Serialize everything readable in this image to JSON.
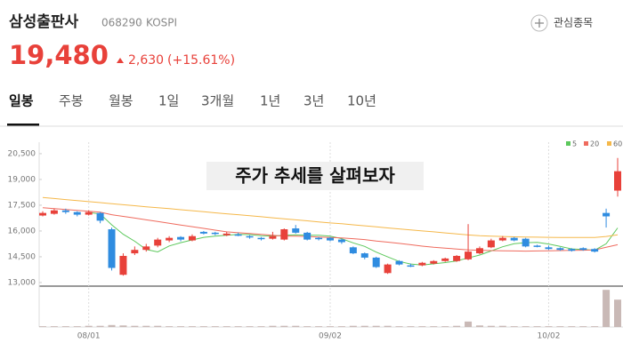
{
  "header": {
    "title": "삼성출판사",
    "code": "068290",
    "market": "KOSPI",
    "watch_button": "관심종목",
    "price": "19,480",
    "change": "2,630",
    "change_pct": "(+15.61%)"
  },
  "tabs": [
    "일봉",
    "주봉",
    "월봉",
    "1일",
    "3개월",
    "1년",
    "3년",
    "10년"
  ],
  "overlay_text": "주가 추세를 살펴보자",
  "chart_data": {
    "type": "candlestick",
    "categories": [
      null,
      null,
      null,
      null,
      "08/01",
      null,
      null,
      null,
      null,
      null,
      null,
      null,
      null,
      null,
      null,
      null,
      null,
      null,
      null,
      null,
      null,
      null,
      null,
      null,
      null,
      "09/02",
      null,
      null,
      null,
      null,
      null,
      null,
      null,
      null,
      null,
      null,
      null,
      null,
      null,
      null,
      null,
      null,
      null,
      null,
      "10/02",
      null,
      null,
      null,
      null,
      null,
      null
    ],
    "open": [
      16900,
      17000,
      17200,
      17100,
      16950,
      17050,
      16100,
      13450,
      14700,
      14900,
      15150,
      15450,
      15650,
      15450,
      15950,
      15900,
      15750,
      15800,
      15700,
      15600,
      15550,
      15500,
      16150,
      15900,
      15600,
      15600,
      15500,
      15050,
      14700,
      14450,
      13550,
      14250,
      14000,
      14000,
      14100,
      14250,
      14250,
      14350,
      14700,
      15050,
      15450,
      15600,
      15550,
      15150,
      15050,
      15000,
      14950,
      15000,
      14950,
      17050,
      18350
    ],
    "high": [
      17150,
      17300,
      17300,
      17150,
      17200,
      17100,
      16200,
      14700,
      15100,
      15250,
      15600,
      15700,
      15700,
      15800,
      16000,
      15950,
      15950,
      15900,
      15750,
      15650,
      15950,
      16150,
      16350,
      15950,
      15650,
      15650,
      15550,
      15100,
      14750,
      14500,
      14100,
      14300,
      14100,
      14200,
      14300,
      14450,
      14600,
      16400,
      15100,
      15550,
      15700,
      15650,
      15600,
      15200,
      15150,
      15050,
      15000,
      15050,
      15000,
      17300,
      20250
    ],
    "low": [
      16850,
      16950,
      17000,
      16850,
      16900,
      16450,
      13700,
      13400,
      14600,
      14800,
      15050,
      15350,
      15400,
      15400,
      15800,
      15750,
      15700,
      15700,
      15550,
      15450,
      15500,
      15450,
      15850,
      15450,
      15450,
      15400,
      15250,
      14650,
      14350,
      13850,
      13500,
      14000,
      13900,
      13950,
      14050,
      14200,
      14200,
      14300,
      14650,
      15000,
      15400,
      15400,
      15050,
      15050,
      14900,
      14850,
      14800,
      14850,
      14750,
      16200,
      18000
    ],
    "close": [
      17050,
      17200,
      17100,
      16950,
      17100,
      16600,
      13850,
      14550,
      14900,
      15100,
      15500,
      15600,
      15500,
      15700,
      15850,
      15850,
      15850,
      15750,
      15650,
      15550,
      15700,
      16100,
      15900,
      15500,
      15550,
      15450,
      15350,
      14700,
      14450,
      13900,
      14050,
      14050,
      13950,
      14150,
      14250,
      14400,
      14550,
      14800,
      15000,
      15450,
      15600,
      15450,
      15100,
      15100,
      14950,
      14900,
      14850,
      14900,
      14800,
      16850,
      19480
    ],
    "up_color": "#e8413a",
    "down_color": "#2f8ce0",
    "series": [
      {
        "name": "5",
        "color": "#5cc85c",
        "values": [
          null,
          null,
          null,
          null,
          17080,
          16990,
          16360,
          15810,
          15400,
          14920,
          14780,
          15130,
          15320,
          15480,
          15630,
          15700,
          15750,
          15800,
          15790,
          15730,
          15700,
          15750,
          15780,
          15750,
          15750,
          15700,
          15550,
          15310,
          15100,
          14770,
          14490,
          14230,
          14080,
          14020,
          14090,
          14160,
          14260,
          14430,
          14600,
          14840,
          15080,
          15260,
          15320,
          15340,
          15240,
          15100,
          14960,
          14920,
          14880,
          15260,
          16180
        ]
      },
      {
        "name": "20",
        "color": "#ef6b5e",
        "values": [
          17350,
          17300,
          17250,
          17200,
          17150,
          17100,
          16950,
          16850,
          16750,
          16650,
          16550,
          16450,
          16350,
          16250,
          16150,
          16050,
          15950,
          15900,
          15850,
          15800,
          15750,
          15700,
          15700,
          15680,
          15650,
          15620,
          15600,
          15550,
          15500,
          15420,
          15350,
          15280,
          15200,
          15120,
          15050,
          15000,
          14950,
          14900,
          14880,
          14860,
          14850,
          14840,
          14830,
          14840,
          14850,
          14860,
          14870,
          14880,
          14900,
          15050,
          15200
        ]
      },
      {
        "name": "60",
        "color": "#f5b84a",
        "values": [
          17950,
          17890,
          17830,
          17770,
          17710,
          17650,
          17590,
          17530,
          17470,
          17410,
          17350,
          17300,
          17240,
          17180,
          17120,
          17060,
          17000,
          16950,
          16890,
          16830,
          16770,
          16710,
          16650,
          16590,
          16530,
          16470,
          16420,
          16360,
          16300,
          16240,
          16180,
          16120,
          16060,
          16000,
          15950,
          15890,
          15830,
          15770,
          15730,
          15700,
          15680,
          15660,
          15650,
          15640,
          15630,
          15620,
          15620,
          15620,
          15620,
          15680,
          15780
        ]
      }
    ],
    "volume": {
      "color": "#c9b9b6",
      "ylim": [
        0,
        100
      ],
      "values": [
        2,
        2,
        2,
        2,
        3,
        3,
        5,
        4,
        3,
        3,
        3,
        2,
        2,
        2,
        2,
        2,
        2,
        2,
        2,
        2,
        3,
        3,
        3,
        2,
        2,
        2,
        2,
        3,
        3,
        3,
        3,
        2,
        2,
        2,
        2,
        2,
        3,
        14,
        4,
        3,
        3,
        2,
        2,
        2,
        2,
        2,
        2,
        2,
        2,
        95,
        70
      ]
    },
    "ylim": [
      12790,
      21170
    ],
    "yticks": [
      {
        "value": 20500,
        "label": "20,500"
      },
      {
        "value": 19000,
        "label": "19,000"
      },
      {
        "value": 17500,
        "label": "17,500"
      },
      {
        "value": 16000,
        "label": "16,000"
      },
      {
        "value": 14500,
        "label": "14,500"
      },
      {
        "value": 13000,
        "label": "13,000"
      }
    ],
    "grid": true
  }
}
